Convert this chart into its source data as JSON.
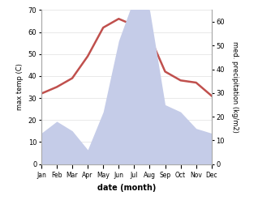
{
  "months": [
    "Jan",
    "Feb",
    "Mar",
    "Apr",
    "May",
    "Jun",
    "Jul",
    "Aug",
    "Sep",
    "Oct",
    "Nov",
    "Dec"
  ],
  "temperature": [
    32,
    35,
    39,
    49,
    62,
    66,
    63,
    58,
    42,
    38,
    37,
    31
  ],
  "precipitation": [
    13,
    18,
    14,
    6,
    22,
    52,
    70,
    65,
    25,
    22,
    15,
    13
  ],
  "temp_color": "#c0504d",
  "precip_fill_color": "#c5cce8",
  "temp_ylim": [
    0,
    70
  ],
  "precip_ylim": [
    0,
    65
  ],
  "xlabel": "date (month)",
  "ylabel_left": "max temp (C)",
  "ylabel_right": "med. precipitation (kg/m2)",
  "temp_yticks": [
    0,
    10,
    20,
    30,
    40,
    50,
    60,
    70
  ],
  "precip_yticks": [
    0,
    10,
    20,
    30,
    40,
    50,
    60
  ],
  "background_color": "#ffffff",
  "figwidth": 3.18,
  "figheight": 2.47,
  "dpi": 100
}
